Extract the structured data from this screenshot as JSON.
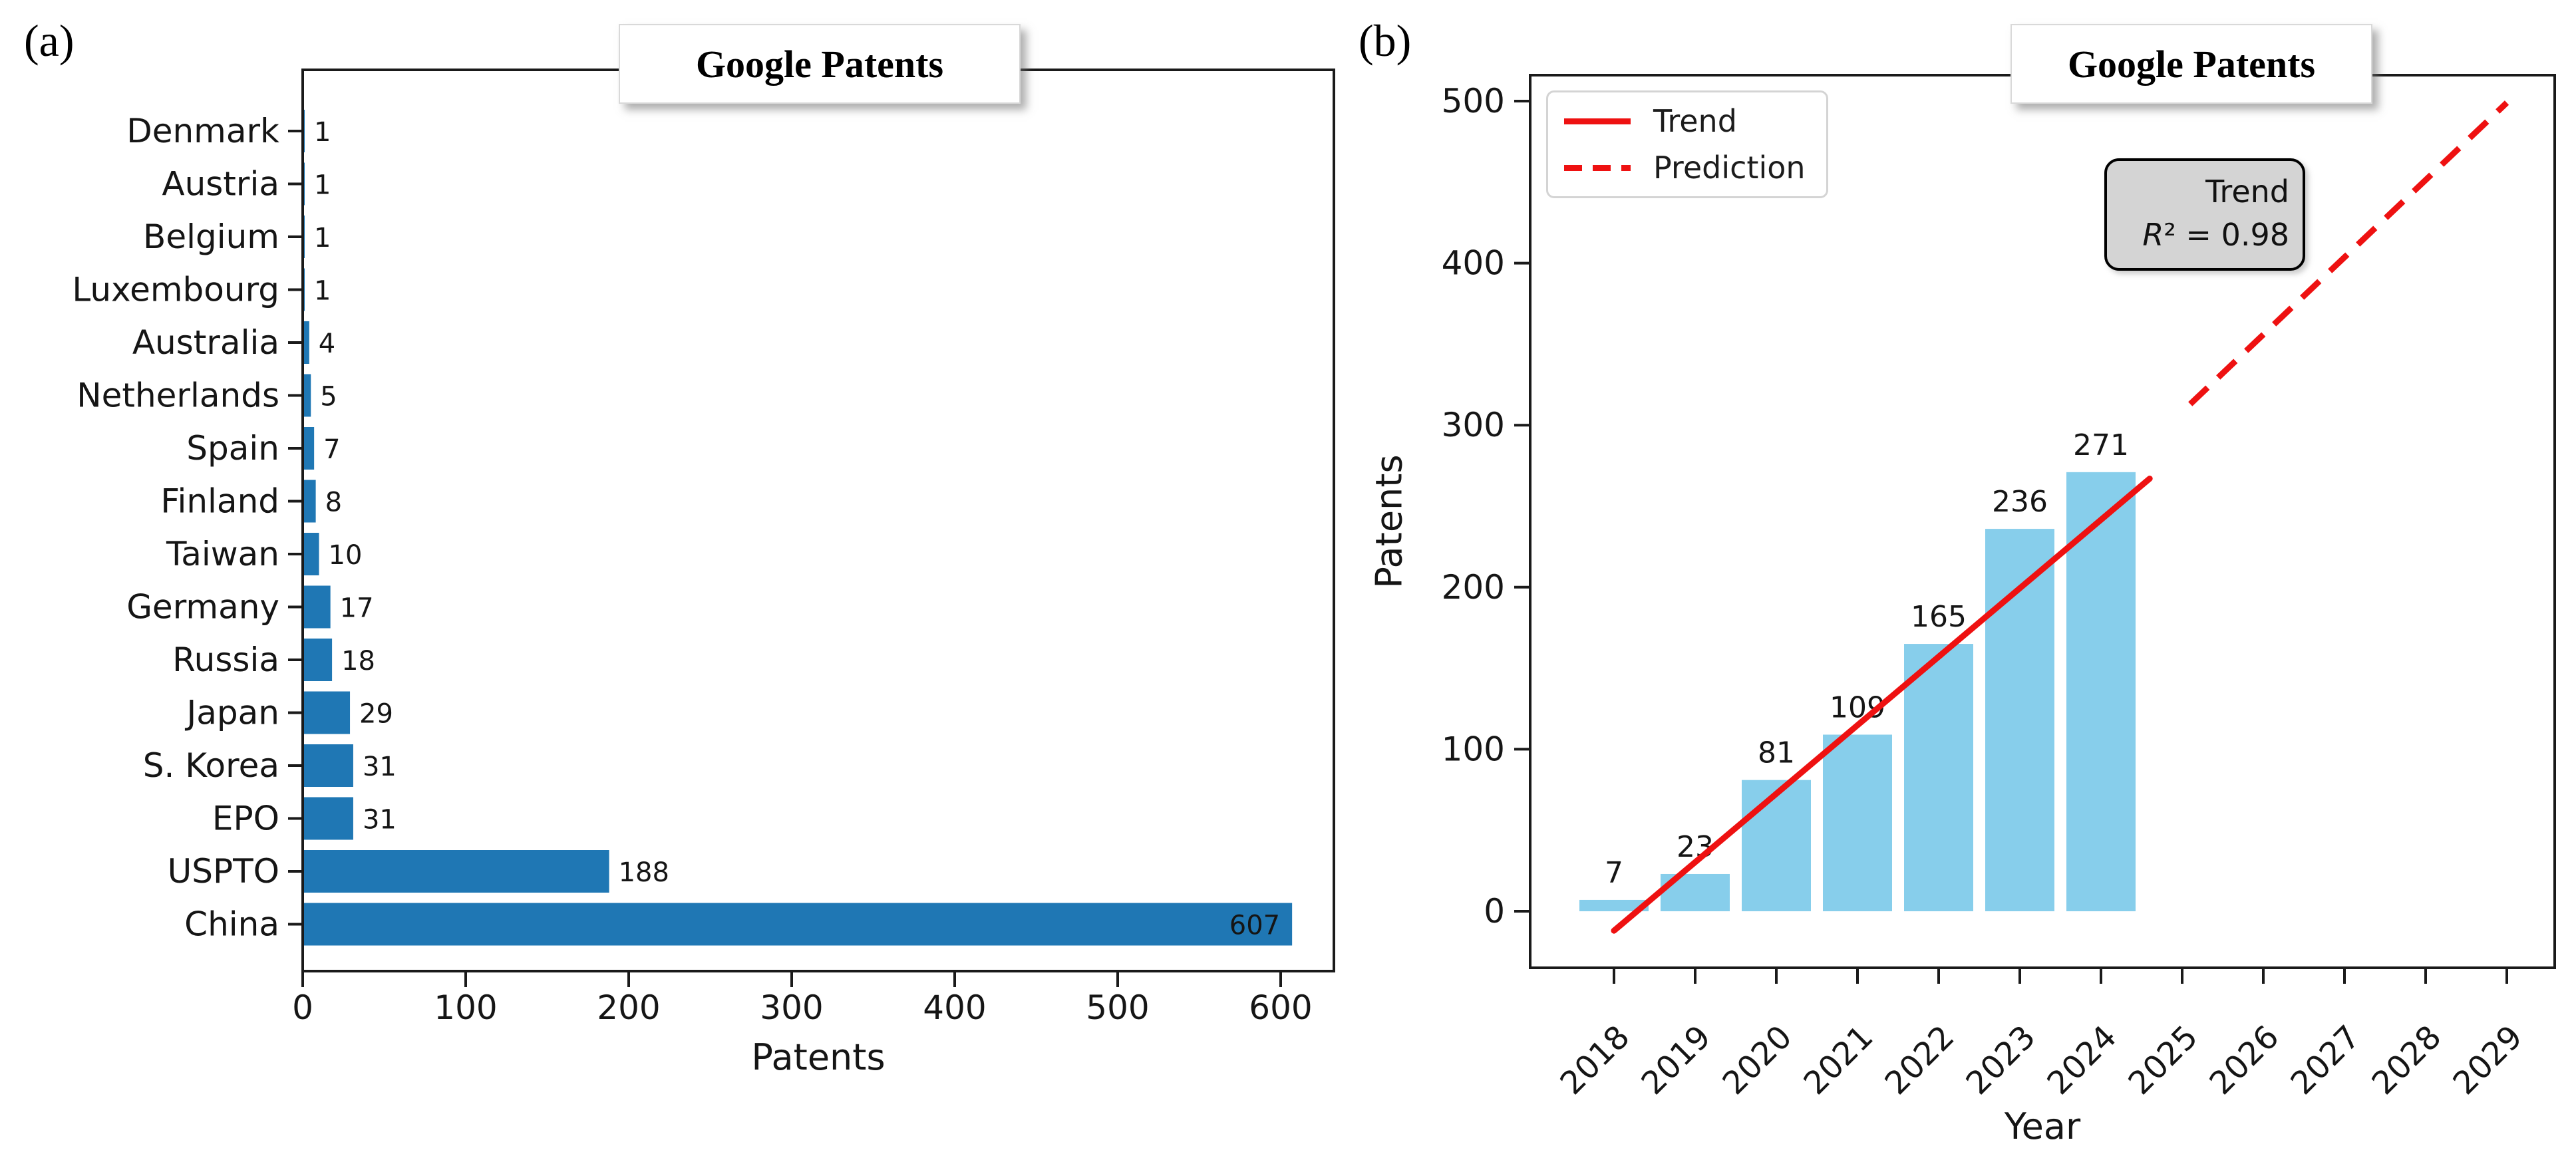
{
  "figure": {
    "background": "#ffffff",
    "spine_color": "#1a1a1a",
    "text_color": "#151515"
  },
  "panel_a": {
    "label": "(a)",
    "title": "Google Patents",
    "chart_data": {
      "type": "bar",
      "orientation": "horizontal",
      "title": "Google Patents",
      "categories": [
        "Denmark",
        "Austria",
        "Belgium",
        "Luxembourg",
        "Australia",
        "Netherlands",
        "Spain",
        "Finland",
        "Taiwan",
        "Germany",
        "Russia",
        "Japan",
        "S. Korea",
        "EPO",
        "USPTO",
        "China"
      ],
      "values": [
        1,
        1,
        1,
        1,
        4,
        5,
        7,
        8,
        10,
        17,
        18,
        29,
        31,
        31,
        188,
        607
      ],
      "xlabel": "Patents",
      "xticks": [
        0,
        100,
        200,
        300,
        400,
        500,
        600
      ],
      "xlim": [
        0,
        633
      ],
      "bar_color": "#1f77b4",
      "value_labels": true,
      "grid": false
    }
  },
  "panel_b": {
    "label": "(b)",
    "title": "Google Patents",
    "legend": {
      "position": "upper-left",
      "items": [
        {
          "label": "Trend",
          "style": "solid",
          "color": "#ee1111"
        },
        {
          "label": "Prediction",
          "style": "dashed",
          "color": "#ee1111"
        }
      ]
    },
    "annotation": {
      "line1": "Trend",
      "line2": "R² = 0.98"
    },
    "chart_data": {
      "type": "bar",
      "orientation": "vertical",
      "title": "Google Patents",
      "categories": [
        "2018",
        "2019",
        "2020",
        "2021",
        "2022",
        "2023",
        "2024",
        "2025",
        "2026",
        "2027",
        "2028",
        "2029"
      ],
      "values": [
        7,
        23,
        81,
        109,
        165,
        236,
        271
      ],
      "bar_color": "#87ceeb",
      "xlabel": "Year",
      "ylabel": "Patents",
      "yticks": [
        0,
        100,
        200,
        300,
        400,
        500
      ],
      "ylim": [
        -35,
        516
      ],
      "grid": false,
      "trend_line": {
        "name": "Trend",
        "color": "#ee1111",
        "x_start_year": 2018,
        "y_start": -12,
        "x_end_year": 2024.6,
        "y_end": 267,
        "r_squared": 0.98
      },
      "prediction_line": {
        "name": "Prediction",
        "color": "#ee1111",
        "x_start_year": 2025.1,
        "y_start": 313,
        "x_end_year": 2029,
        "y_end": 499
      }
    }
  }
}
